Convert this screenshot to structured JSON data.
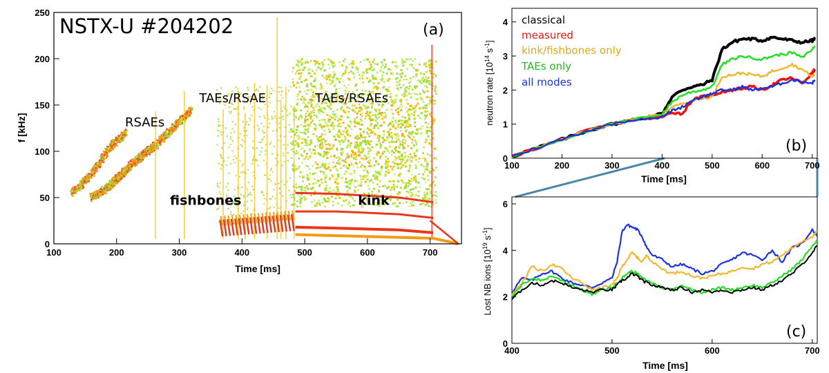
{
  "chart_data": [
    {
      "panel": "(a)",
      "type": "heatmap",
      "title": "NSTX-U #204202",
      "xlabel": "Time [ms]",
      "ylabel": "f [kHz]",
      "xlim": [
        100,
        750
      ],
      "ylim": [
        0,
        250
      ],
      "xticks": [
        "100",
        "200",
        "300",
        "400",
        "500",
        "600",
        "700"
      ],
      "yticks": [
        "0",
        "50",
        "100",
        "150",
        "200",
        "250"
      ],
      "annotations": [
        {
          "text": "RSAEs",
          "x": 245,
          "y": 127
        },
        {
          "text": "TAEs/RSAE",
          "x": 385,
          "y": 153
        },
        {
          "text": "TAEs/RSAEs",
          "x": 575,
          "y": 153
        },
        {
          "text": "fishbones",
          "x": 342,
          "y": 42
        },
        {
          "text": "kink",
          "x": 610,
          "y": 42
        }
      ],
      "modes": [
        {
          "name": "RSAE sweep 1",
          "x": [
            130,
            160,
            190,
            215
          ],
          "y": [
            55,
            75,
            105,
            120
          ]
        },
        {
          "name": "RSAE sweep 2",
          "x": [
            160,
            185,
            200,
            215
          ],
          "y": [
            50,
            60,
            70,
            80
          ]
        },
        {
          "name": "RSAE sweep 3",
          "x": [
            215,
            240,
            260,
            290,
            320
          ],
          "y": [
            80,
            95,
            105,
            125,
            145
          ]
        },
        {
          "name": "fishbones",
          "x": [
            365,
            480
          ],
          "y": [
            10,
            30
          ]
        },
        {
          "name": "kink n=1",
          "x": [
            485,
            550,
            650,
            705
          ],
          "y": [
            18,
            17,
            15,
            12
          ]
        },
        {
          "name": "kink n=2",
          "x": [
            485,
            550,
            650,
            705
          ],
          "y": [
            35,
            35,
            32,
            28
          ]
        },
        {
          "name": "kink n=3",
          "x": [
            485,
            550,
            650,
            705
          ],
          "y": [
            55,
            54,
            50,
            45
          ]
        }
      ]
    },
    {
      "panel": "(b)",
      "type": "line",
      "xlabel": "Time [ms]",
      "ylabel": "neutron rate [10",
      "ylabel_sup": "14",
      "ylabel_end": " s",
      "ylabel_sup2": "-1",
      "ylabel_close": "]",
      "xlim": [
        100,
        710
      ],
      "ylim": [
        0,
        4.4
      ],
      "xticks": [
        "100",
        "200",
        "300",
        "400",
        "500",
        "600",
        "700"
      ],
      "yticks": [
        "0",
        "1",
        "2",
        "3",
        "4"
      ],
      "legend": "top-left",
      "series": [
        {
          "name": "classical",
          "color": "#000000",
          "x": [
            100,
            150,
            200,
            250,
            300,
            350,
            400,
            420,
            440,
            460,
            480,
            500,
            520,
            540,
            560,
            580,
            600,
            620,
            640,
            660,
            680,
            700,
            705
          ],
          "y": [
            0.05,
            0.3,
            0.55,
            0.8,
            1.0,
            1.15,
            1.3,
            1.8,
            2.0,
            2.1,
            2.15,
            2.3,
            3.2,
            3.4,
            3.5,
            3.5,
            3.45,
            3.55,
            3.5,
            3.45,
            3.4,
            3.45,
            3.5
          ]
        },
        {
          "name": "measured",
          "color": "#ee1111",
          "x": [
            100,
            150,
            200,
            250,
            300,
            350,
            400,
            420,
            440,
            460,
            480,
            500,
            520,
            540,
            560,
            580,
            600,
            620,
            640,
            660,
            680,
            700,
            705
          ],
          "y": [
            0.05,
            0.3,
            0.55,
            0.8,
            1.0,
            1.15,
            1.2,
            1.35,
            1.3,
            1.7,
            1.8,
            1.85,
            1.95,
            2.0,
            2.05,
            2.1,
            2.0,
            2.15,
            2.3,
            2.35,
            2.2,
            2.5,
            2.6
          ]
        },
        {
          "name": "kink/fishbones only",
          "color": "#f0b830",
          "x": [
            100,
            150,
            200,
            250,
            300,
            350,
            400,
            420,
            440,
            460,
            480,
            500,
            520,
            540,
            560,
            580,
            600,
            620,
            640,
            660,
            680,
            700,
            705
          ],
          "y": [
            0.05,
            0.3,
            0.55,
            0.8,
            1.0,
            1.15,
            1.3,
            1.5,
            1.6,
            1.7,
            1.75,
            1.8,
            2.4,
            2.45,
            2.5,
            2.45,
            2.4,
            2.55,
            2.65,
            2.75,
            2.6,
            2.4,
            2.45
          ]
        },
        {
          "name": "TAEs only",
          "color": "#22dd22",
          "x": [
            100,
            150,
            200,
            250,
            300,
            350,
            400,
            420,
            440,
            460,
            480,
            500,
            520,
            540,
            560,
            580,
            600,
            620,
            640,
            660,
            680,
            700,
            705
          ],
          "y": [
            0.05,
            0.3,
            0.55,
            0.8,
            1.0,
            1.15,
            1.3,
            1.65,
            1.85,
            1.95,
            2.0,
            2.1,
            2.75,
            2.9,
            3.0,
            2.95,
            2.9,
            3.0,
            3.05,
            3.1,
            2.95,
            3.2,
            3.3
          ]
        },
        {
          "name": "all modes",
          "color": "#1a33dd",
          "x": [
            100,
            150,
            200,
            250,
            300,
            350,
            400,
            420,
            440,
            460,
            480,
            500,
            520,
            540,
            560,
            580,
            600,
            620,
            640,
            660,
            680,
            700,
            705
          ],
          "y": [
            0.05,
            0.3,
            0.55,
            0.8,
            1.0,
            1.15,
            1.2,
            1.4,
            1.5,
            1.7,
            1.8,
            1.9,
            2.0,
            2.0,
            2.1,
            2.0,
            2.05,
            2.1,
            2.2,
            2.3,
            2.25,
            2.2,
            2.3
          ]
        }
      ]
    },
    {
      "panel": "(c)",
      "type": "line",
      "xlabel": "Time [ms]",
      "ylabel": "Lost NB ions [10",
      "ylabel_sup": "19",
      "ylabel_end": " s",
      "ylabel_sup2": "-1",
      "ylabel_close": "]",
      "xlim": [
        400,
        705
      ],
      "ylim": [
        0,
        6.3
      ],
      "xticks": [
        "400",
        "500",
        "600",
        "700"
      ],
      "yticks": [
        "0",
        "2",
        "4",
        "6"
      ],
      "series": [
        {
          "name": "all modes",
          "color": "#1a33dd",
          "x": [
            400,
            410,
            420,
            430,
            440,
            450,
            460,
            470,
            480,
            490,
            500,
            505,
            510,
            515,
            520,
            525,
            530,
            535,
            540,
            550,
            560,
            570,
            580,
            590,
            600,
            610,
            620,
            630,
            640,
            650,
            660,
            670,
            680,
            690,
            700,
            705
          ],
          "y": [
            2.2,
            2.8,
            2.7,
            3.0,
            3.1,
            2.8,
            2.6,
            2.5,
            2.4,
            2.6,
            2.8,
            3.5,
            4.8,
            5.1,
            5.0,
            4.9,
            4.6,
            4.1,
            3.8,
            3.6,
            3.3,
            3.4,
            3.2,
            3.0,
            3.1,
            3.4,
            3.6,
            3.9,
            3.8,
            3.6,
            4.0,
            3.5,
            4.1,
            4.3,
            4.9,
            4.6
          ]
        },
        {
          "name": "kink/fishbones only",
          "color": "#f0b830",
          "x": [
            400,
            410,
            420,
            430,
            440,
            450,
            460,
            470,
            480,
            490,
            500,
            505,
            510,
            515,
            520,
            525,
            530,
            535,
            540,
            550,
            560,
            570,
            580,
            590,
            600,
            610,
            620,
            630,
            640,
            650,
            660,
            670,
            680,
            690,
            700,
            705
          ],
          "y": [
            2.1,
            2.6,
            3.3,
            3.1,
            3.4,
            3.2,
            2.8,
            2.6,
            2.3,
            2.4,
            2.5,
            2.8,
            3.3,
            3.6,
            3.9,
            3.7,
            3.5,
            3.8,
            3.5,
            3.2,
            3.0,
            3.1,
            2.9,
            2.8,
            2.9,
            3.0,
            3.1,
            3.3,
            3.2,
            3.4,
            3.5,
            3.8,
            4.1,
            4.4,
            4.6,
            4.8
          ]
        },
        {
          "name": "TAEs only",
          "color": "#22dd22",
          "x": [
            400,
            410,
            420,
            430,
            440,
            450,
            460,
            470,
            480,
            490,
            500,
            505,
            510,
            515,
            520,
            525,
            530,
            535,
            540,
            550,
            560,
            570,
            580,
            590,
            600,
            610,
            620,
            630,
            640,
            650,
            660,
            670,
            680,
            690,
            700,
            705
          ],
          "y": [
            2.0,
            2.5,
            2.8,
            2.7,
            2.9,
            2.7,
            2.5,
            2.3,
            2.1,
            2.3,
            2.4,
            2.6,
            2.8,
            3.0,
            3.1,
            3.0,
            2.8,
            2.7,
            2.6,
            2.4,
            2.3,
            2.5,
            2.3,
            2.2,
            2.3,
            2.4,
            2.3,
            2.4,
            2.5,
            2.4,
            2.6,
            2.9,
            3.2,
            3.6,
            4.2,
            4.4
          ]
        },
        {
          "name": "classical",
          "color": "#000000",
          "x": [
            400,
            410,
            420,
            430,
            440,
            450,
            460,
            470,
            480,
            490,
            500,
            505,
            510,
            515,
            520,
            525,
            530,
            535,
            540,
            550,
            560,
            570,
            580,
            590,
            600,
            610,
            620,
            630,
            640,
            650,
            660,
            670,
            680,
            690,
            700,
            705
          ],
          "y": [
            1.9,
            2.3,
            2.6,
            2.5,
            2.7,
            2.6,
            2.4,
            2.3,
            2.2,
            2.3,
            2.3,
            2.5,
            2.7,
            2.8,
            3.0,
            2.9,
            2.7,
            2.6,
            2.5,
            2.4,
            2.3,
            2.4,
            2.2,
            2.3,
            2.2,
            2.3,
            2.2,
            2.3,
            2.4,
            2.3,
            2.5,
            2.7,
            3.0,
            3.4,
            3.9,
            4.2
          ]
        }
      ]
    }
  ]
}
